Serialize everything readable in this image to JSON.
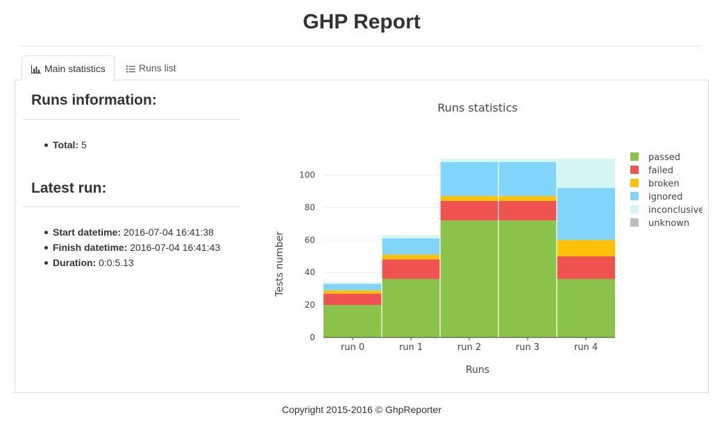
{
  "header": {
    "title": "GHP Report"
  },
  "tabs": [
    {
      "label": "Main statistics",
      "icon": "bar-chart-icon",
      "active": true
    },
    {
      "label": "Runs list",
      "icon": "list-icon",
      "active": false
    }
  ],
  "runs_info": {
    "heading": "Runs information:",
    "total_label": "Total:",
    "total_value": "5"
  },
  "latest_run": {
    "heading": "Latest run:",
    "start_label": "Start datetime:",
    "start_value": "2016-07-04 16:41:38",
    "finish_label": "Finish datetime:",
    "finish_value": "2016-07-04 16:41:43",
    "duration_label": "Duration:",
    "duration_value": "0:0:5.13"
  },
  "chart_data": {
    "type": "bar",
    "stacked": true,
    "title": "Runs statistics",
    "xlabel": "Runs",
    "ylabel": "Tests number",
    "categories": [
      "run 0",
      "run 1",
      "run 2",
      "run 3",
      "run 4"
    ],
    "ylim": [
      0,
      110
    ],
    "yticks": [
      0,
      20,
      40,
      60,
      80,
      100
    ],
    "grid": true,
    "legend_position": "right",
    "series": [
      {
        "name": "passed",
        "color": "#8bc34a",
        "values": [
          20,
          36,
          72,
          72,
          36
        ]
      },
      {
        "name": "failed",
        "color": "#ef5350",
        "values": [
          7,
          12,
          12,
          12,
          14
        ]
      },
      {
        "name": "broken",
        "color": "#ffc107",
        "values": [
          2,
          3,
          3,
          3,
          10
        ]
      },
      {
        "name": "ignored",
        "color": "#81d4fa",
        "values": [
          4,
          10,
          21,
          21,
          32
        ]
      },
      {
        "name": "inconclusive",
        "color": "#d4f7f3",
        "values": [
          1,
          2,
          2,
          2,
          18
        ]
      },
      {
        "name": "unknown",
        "color": "#bdbdbd",
        "values": [
          0,
          0,
          0,
          0,
          0
        ]
      }
    ]
  },
  "footer": {
    "copyright": "Copyright 2015-2016 © GhpReporter"
  }
}
